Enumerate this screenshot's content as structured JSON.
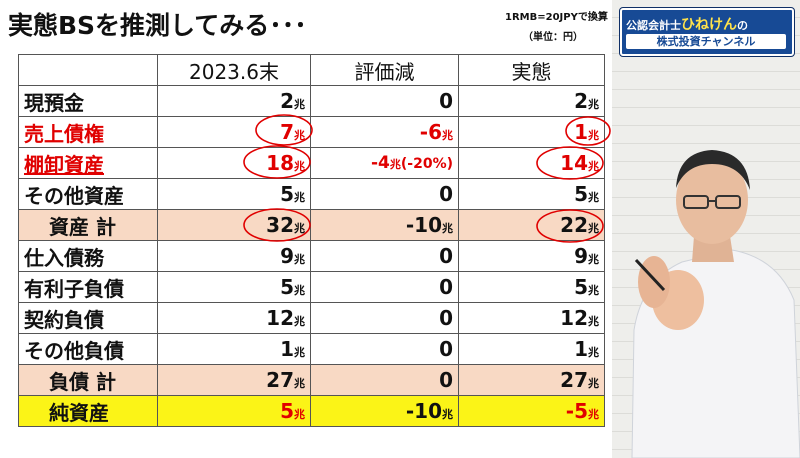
{
  "slide": {
    "title": "実態BSを推測してみる･･･",
    "fx_note": "1RMB=20JPYで換算",
    "unit_note": "（単位：円）"
  },
  "table": {
    "headers": [
      "",
      "2023.6末",
      "評価減",
      "実態"
    ],
    "unit_suffix": "兆",
    "rows": [
      {
        "label": "現預金",
        "v2023": "2",
        "writedown": "0",
        "actual": "2"
      },
      {
        "label": "売上債権",
        "v2023": "7",
        "writedown": "-6",
        "actual": "1"
      },
      {
        "label": "棚卸資産",
        "v2023": "18",
        "writedown": "-4",
        "writedown_note": "(-20%)",
        "actual": "14"
      },
      {
        "label": "その他資産",
        "v2023": "5",
        "writedown": "0",
        "actual": "5"
      },
      {
        "label": "資産 計",
        "v2023": "32",
        "writedown": "-10",
        "actual": "22"
      },
      {
        "label": "仕入債務",
        "v2023": "9",
        "writedown": "0",
        "actual": "9"
      },
      {
        "label": "有利子負債",
        "v2023": "5",
        "writedown": "0",
        "actual": "5"
      },
      {
        "label": "契約負債",
        "v2023": "12",
        "writedown": "0",
        "actual": "12"
      },
      {
        "label": "その他負債",
        "v2023": "1",
        "writedown": "0",
        "actual": "1"
      },
      {
        "label": "負債 計",
        "v2023": "27",
        "writedown": "0",
        "actual": "27"
      },
      {
        "label": "純資産",
        "v2023": "5",
        "writedown": "-10",
        "actual": "-5"
      }
    ]
  },
  "channel": {
    "name_prefix": "公認会計士",
    "name": "ひねけん",
    "name_suffix": "の",
    "subtitle": "株式投資チャンネル"
  },
  "colors": {
    "red": "#e00000",
    "subtotal_bg": "#f8d9c4",
    "net_bg": "#fbf417",
    "logo_bg": "#174a95"
  }
}
